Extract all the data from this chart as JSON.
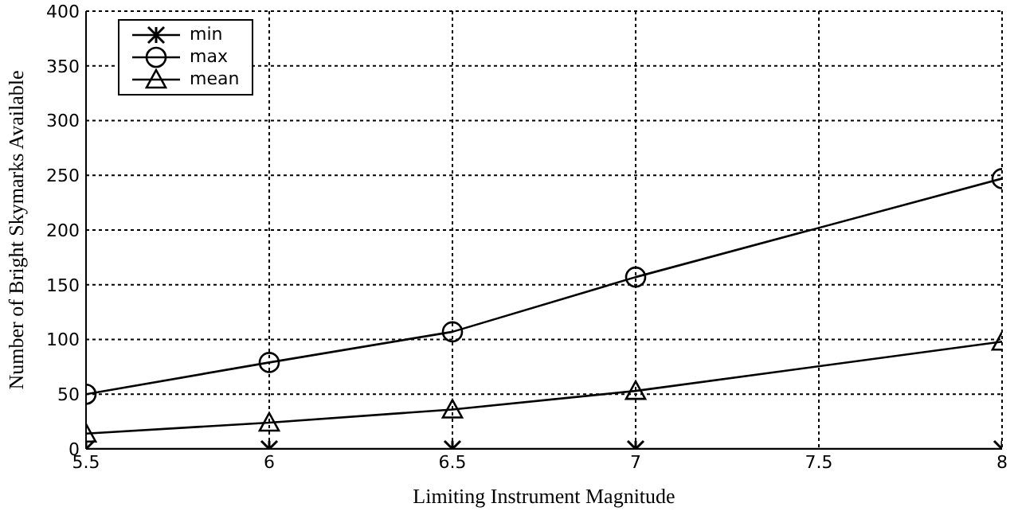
{
  "chart_data": {
    "type": "line",
    "xlabel": "Limiting Instrument Magnitude",
    "ylabel": "Number of Bright Skymarks Available",
    "x": [
      5.5,
      6,
      6.5,
      7,
      8
    ],
    "series": [
      {
        "name": "min",
        "color": "#000000",
        "marker": "cross",
        "values": [
          0,
          0,
          0,
          0,
          0
        ]
      },
      {
        "name": "max",
        "color": "#000000",
        "marker": "circle",
        "values": [
          50,
          79,
          107,
          157,
          247
        ]
      },
      {
        "name": "mean",
        "color": "#000000",
        "marker": "triangle",
        "values": [
          14,
          24,
          36,
          53,
          98
        ]
      }
    ],
    "xlim": [
      5.5,
      8
    ],
    "xticks": [
      5.5,
      6,
      6.5,
      7,
      7.5,
      8
    ],
    "ylim": [
      0,
      400
    ],
    "yticks": [
      0,
      50,
      100,
      150,
      200,
      250,
      300,
      350,
      400
    ],
    "grid": true,
    "legend": "top left",
    "line_style": "solid"
  }
}
